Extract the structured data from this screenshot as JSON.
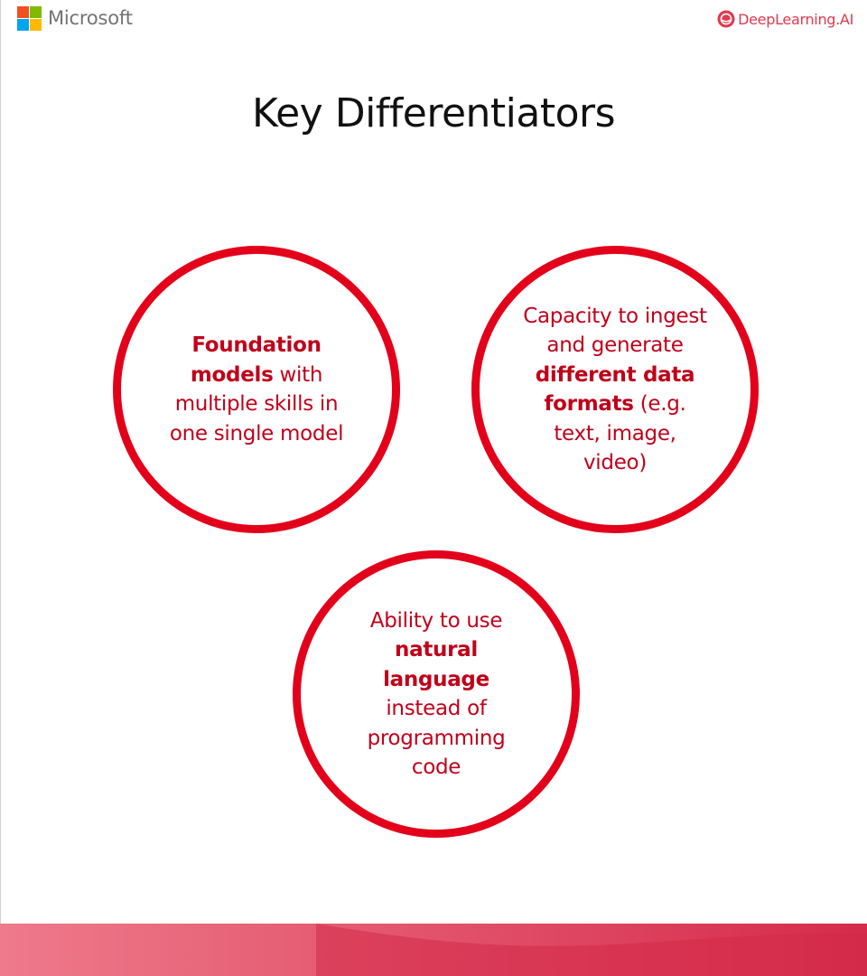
{
  "header": {
    "microsoft_label": "Microsoft",
    "microsoft_colors": [
      "#f25022",
      "#7fba00",
      "#00a4ef",
      "#ffb900"
    ],
    "deeplearning_label": "DeepLearning.AI",
    "deeplearning_color": "#e2384d"
  },
  "title": "Key Differentiators",
  "accent_color": "#e2001a",
  "circles": [
    {
      "bold_1": "Foundation models",
      "text_1": " with multiple skills in one single model"
    },
    {
      "text_1": "Capacity to ingest and generate ",
      "bold_1": "different data formats",
      "text_2": " (e.g. text, image, video)"
    },
    {
      "text_1": "Ability to use ",
      "bold_1": "natural language",
      "text_2": " instead of programming code"
    }
  ],
  "footer": {
    "gradient_start": "#ee7a8a",
    "gradient_end": "#d62b4b"
  }
}
